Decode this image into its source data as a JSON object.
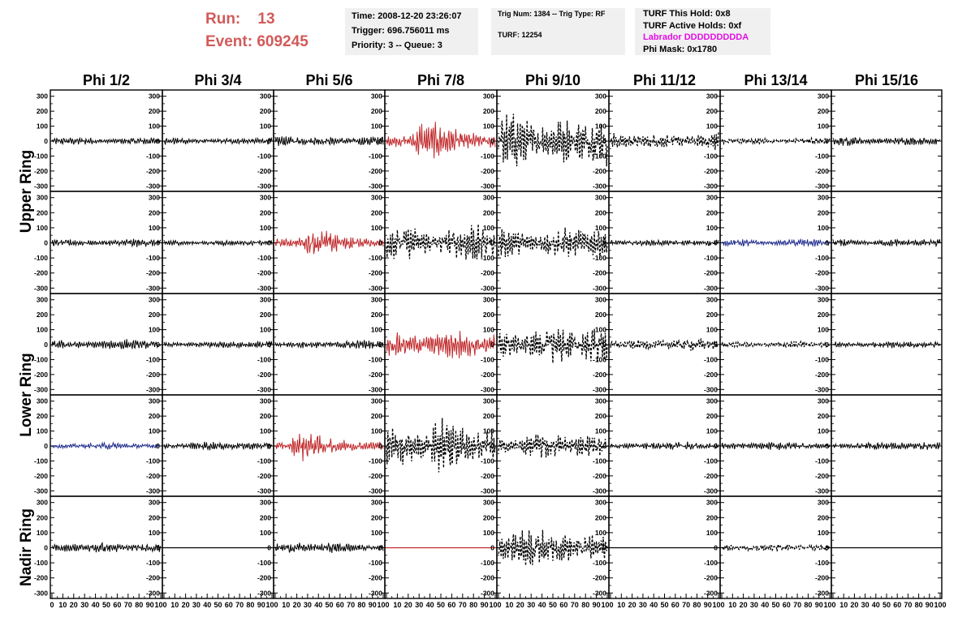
{
  "header": {
    "run_label": "Run:",
    "run_value": "13",
    "event_label": "Event:",
    "event_value": "609245",
    "time": "Time: 2008-12-20 23:26:07",
    "trigger": "Trigger: 696.756011 ms",
    "priority": "Priority: 3 -- Queue: 3",
    "trig": "Trig Num: 1384 -- Trig Type: RF",
    "turf": "TURF: 12254",
    "turf_hold": "TURF This Hold: 0x8",
    "turf_active": "TURF Active Holds: 0xf",
    "labrador": "Labrador DDDDDDDDDA",
    "phi_mask": "Phi Mask: 0x1780"
  },
  "colors": {
    "black": "#000000",
    "red": "#c0282a",
    "blue": "#1e2a8c",
    "header_red": "#d25a5a",
    "magenta": "#e40fe4"
  },
  "chart_data": {
    "type": "line",
    "columns": [
      "Phi 1/2",
      "Phi 3/4",
      "Phi 5/6",
      "Phi 7/8",
      "Phi 9/10",
      "Phi 11/12",
      "Phi 13/14",
      "Phi 15/16"
    ],
    "rows": [
      "Upper Ring",
      "",
      "Lower Ring",
      "",
      "Nadir Ring"
    ],
    "ylim": [
      -320,
      320
    ],
    "yticks": [
      -300,
      -200,
      -100,
      0,
      100,
      200,
      300
    ],
    "xlim": [
      0,
      100
    ],
    "xticks": [
      0,
      10,
      20,
      30,
      40,
      50,
      60,
      70,
      80,
      90,
      100
    ],
    "xtick_labels": [
      "0",
      "10",
      "20",
      "30",
      "40",
      "50",
      "60",
      "70",
      "80",
      "90",
      "100"
    ],
    "panels": [
      [
        {
          "style": "solid",
          "color": "black",
          "amp": 28
        },
        {
          "style": "solid",
          "color": "black",
          "amp": 25
        },
        {
          "style": "solid",
          "color": "black",
          "amp": 38
        },
        {
          "style": "solid",
          "color": "red",
          "amp": 140,
          "peak": 0.35
        },
        {
          "style": "dashed",
          "color": "black",
          "amp": 190
        },
        {
          "style": "dashed",
          "color": "black",
          "amp": 60
        },
        {
          "style": "dashed",
          "color": "black",
          "amp": 22
        },
        {
          "style": "solid",
          "color": "black",
          "amp": 32
        }
      ],
      [
        {
          "style": "solid",
          "color": "black",
          "amp": 28
        },
        {
          "style": "solid",
          "color": "black",
          "amp": 22
        },
        {
          "style": "solid",
          "color": "red",
          "amp": 100,
          "peak": 0.35
        },
        {
          "style": "dashed",
          "color": "black",
          "amp": 130
        },
        {
          "style": "dashed",
          "color": "black",
          "amp": 110
        },
        {
          "style": "solid",
          "color": "black",
          "amp": 24
        },
        {
          "style": "solid",
          "color": "blue",
          "amp": 28
        },
        {
          "style": "solid",
          "color": "black",
          "amp": 28
        }
      ],
      [
        {
          "style": "solid",
          "color": "black",
          "amp": 35
        },
        {
          "style": "solid",
          "color": "black",
          "amp": 25
        },
        {
          "style": "solid",
          "color": "black",
          "amp": 30
        },
        {
          "style": "solid",
          "color": "red",
          "amp": 100
        },
        {
          "style": "dashed",
          "color": "black",
          "amp": 130
        },
        {
          "style": "dashed",
          "color": "black",
          "amp": 40
        },
        {
          "style": "dashed",
          "color": "black",
          "amp": 20
        },
        {
          "style": "solid",
          "color": "black",
          "amp": 25
        }
      ],
      [
        {
          "style": "solid",
          "color": "blue",
          "amp": 22
        },
        {
          "style": "solid",
          "color": "black",
          "amp": 28
        },
        {
          "style": "solid",
          "color": "red",
          "amp": 95,
          "peak": 0.25
        },
        {
          "style": "dashed",
          "color": "black",
          "amp": 170
        },
        {
          "style": "dashed",
          "color": "black",
          "amp": 80
        },
        {
          "style": "solid",
          "color": "black",
          "amp": 28
        },
        {
          "style": "solid",
          "color": "black",
          "amp": 28
        },
        {
          "style": "solid",
          "color": "black",
          "amp": 28
        }
      ],
      [
        {
          "style": "solid",
          "color": "black",
          "amp": 35
        },
        {
          "style": "flat",
          "color": "black",
          "amp": 0
        },
        {
          "style": "solid",
          "color": "black",
          "amp": 35
        },
        {
          "style": "flat",
          "color": "red",
          "amp": 0
        },
        {
          "style": "dashed",
          "color": "black",
          "amp": 120
        },
        {
          "style": "flat",
          "color": "black",
          "amp": 0
        },
        {
          "style": "dashed",
          "color": "black",
          "amp": 25
        },
        {
          "style": "flat",
          "color": "black",
          "amp": 0
        }
      ]
    ]
  }
}
